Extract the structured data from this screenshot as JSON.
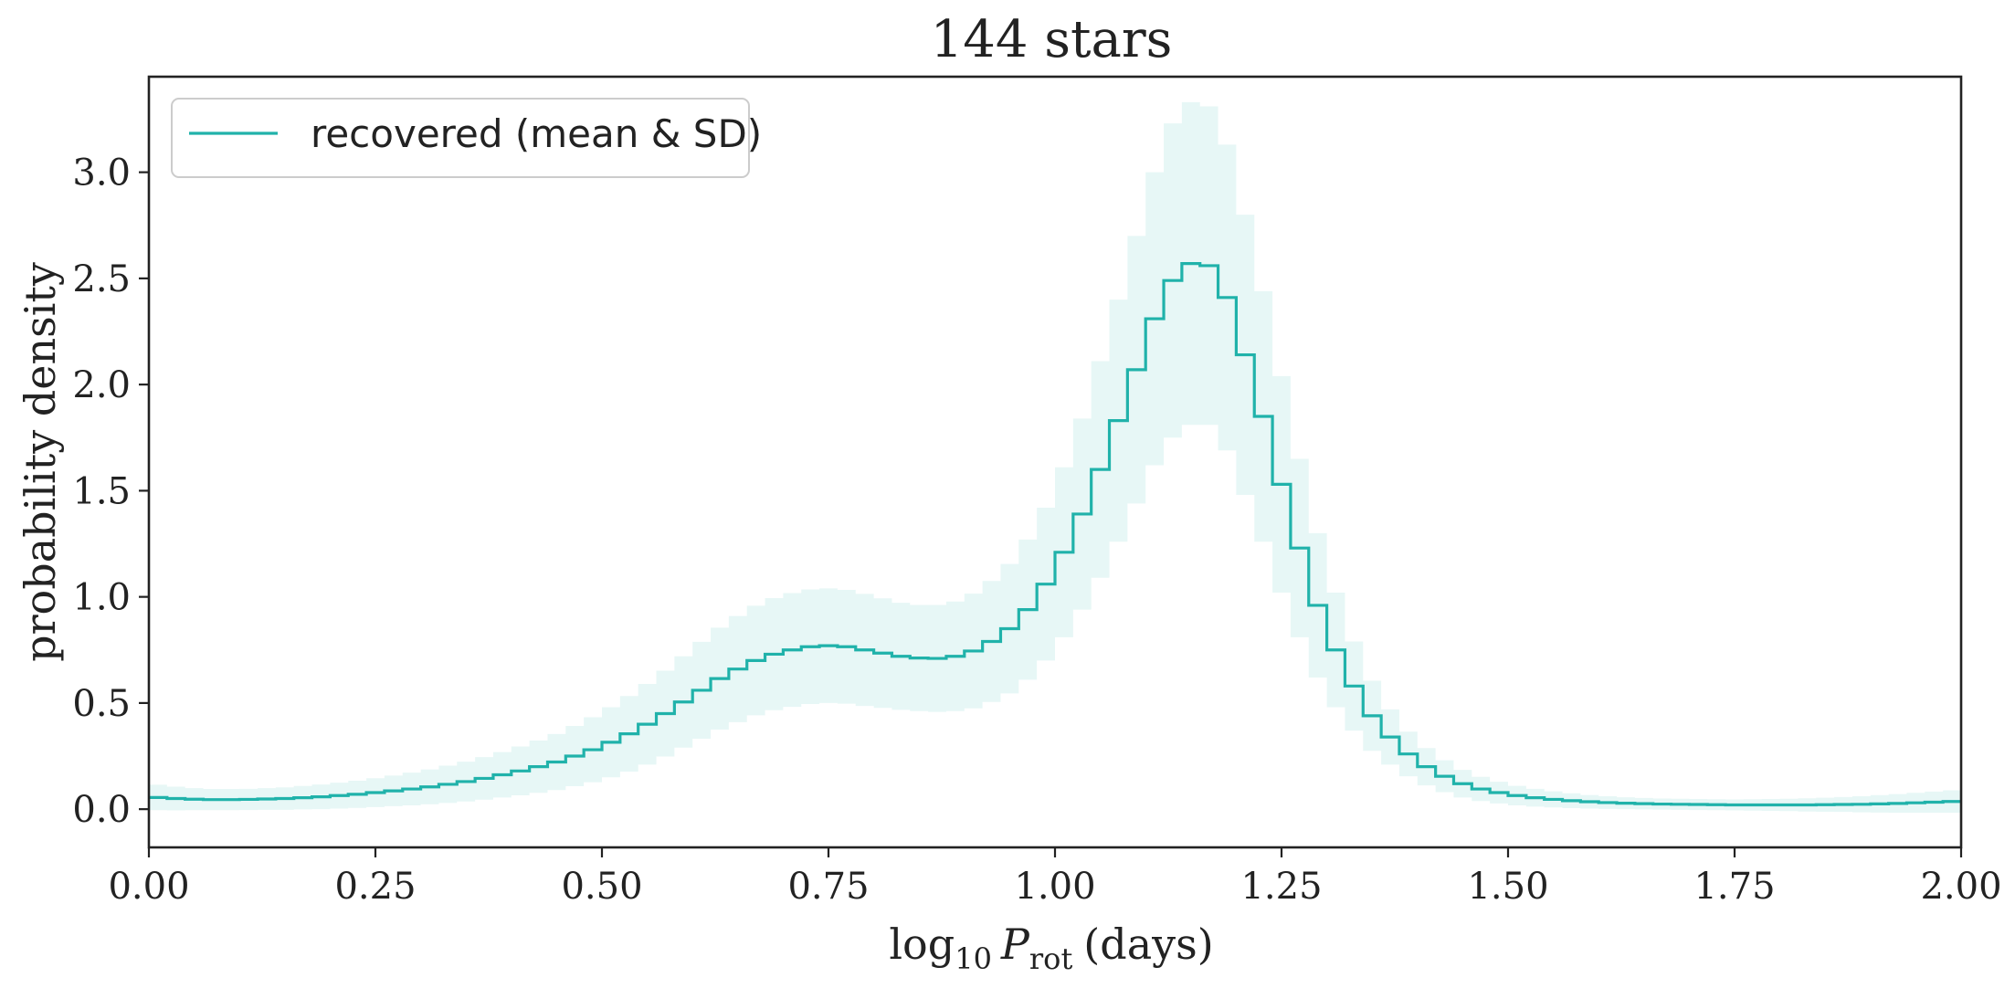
{
  "chart_data": {
    "type": "line",
    "title": "144 stars",
    "xlabel": {
      "base": "log",
      "sub1": "10",
      "var": "P",
      "sub2": "rot",
      "unit": "(days)"
    },
    "ylabel": "probability density",
    "xlim": [
      0,
      2
    ],
    "ylim": [
      -0.18,
      3.45
    ],
    "xticks": [
      0,
      0.25,
      0.5,
      0.75,
      1.0,
      1.25,
      1.5,
      1.75,
      2.0
    ],
    "xtick_labels": [
      "0.00",
      "0.25",
      "0.50",
      "0.75",
      "1.00",
      "1.25",
      "1.50",
      "1.75",
      "2.00"
    ],
    "yticks": [
      0,
      0.5,
      1.0,
      1.5,
      2.0,
      2.5,
      3.0
    ],
    "ytick_labels": [
      "0.0",
      "0.5",
      "1.0",
      "1.5",
      "2.0",
      "2.5",
      "3.0"
    ],
    "legend": {
      "label": "recovered (mean & SD)",
      "position": "top-left"
    },
    "colors": {
      "line": "#20b2aa",
      "band": "#20b2aa",
      "band_opacity": 0.11,
      "axes": "#222222",
      "text": "#222222"
    },
    "bin_width": 0.02,
    "x": [
      0.0,
      0.02,
      0.04,
      0.06,
      0.08,
      0.1,
      0.12,
      0.14,
      0.16,
      0.18,
      0.2,
      0.22,
      0.24,
      0.26,
      0.28,
      0.3,
      0.32,
      0.34,
      0.36,
      0.38,
      0.4,
      0.42,
      0.44,
      0.46,
      0.48,
      0.5,
      0.52,
      0.54,
      0.56,
      0.58,
      0.6,
      0.62,
      0.64,
      0.66,
      0.68,
      0.7,
      0.72,
      0.74,
      0.76,
      0.78,
      0.8,
      0.82,
      0.84,
      0.86,
      0.88,
      0.9,
      0.92,
      0.94,
      0.96,
      0.98,
      1.0,
      1.02,
      1.04,
      1.06,
      1.08,
      1.1,
      1.12,
      1.14,
      1.16,
      1.18,
      1.2,
      1.22,
      1.24,
      1.26,
      1.28,
      1.3,
      1.32,
      1.34,
      1.36,
      1.38,
      1.4,
      1.42,
      1.44,
      1.46,
      1.48,
      1.5,
      1.52,
      1.54,
      1.56,
      1.58,
      1.6,
      1.62,
      1.64,
      1.66,
      1.68,
      1.7,
      1.72,
      1.74,
      1.76,
      1.78,
      1.8,
      1.82,
      1.84,
      1.86,
      1.88,
      1.9,
      1.92,
      1.94,
      1.96,
      1.98
    ],
    "mean": [
      0.055,
      0.05,
      0.047,
      0.045,
      0.045,
      0.046,
      0.048,
      0.05,
      0.054,
      0.058,
      0.064,
      0.07,
      0.078,
      0.086,
      0.095,
      0.105,
      0.117,
      0.13,
      0.145,
      0.162,
      0.18,
      0.2,
      0.222,
      0.25,
      0.28,
      0.315,
      0.355,
      0.4,
      0.45,
      0.505,
      0.56,
      0.615,
      0.66,
      0.7,
      0.73,
      0.75,
      0.765,
      0.77,
      0.765,
      0.75,
      0.735,
      0.72,
      0.712,
      0.71,
      0.72,
      0.745,
      0.79,
      0.85,
      0.94,
      1.06,
      1.21,
      1.39,
      1.6,
      1.83,
      2.07,
      2.31,
      2.49,
      2.57,
      2.56,
      2.41,
      2.14,
      1.85,
      1.53,
      1.23,
      0.96,
      0.75,
      0.58,
      0.44,
      0.34,
      0.26,
      0.2,
      0.155,
      0.12,
      0.095,
      0.078,
      0.064,
      0.054,
      0.046,
      0.04,
      0.035,
      0.031,
      0.028,
      0.026,
      0.024,
      0.023,
      0.022,
      0.021,
      0.02,
      0.02,
      0.02,
      0.02,
      0.02,
      0.021,
      0.022,
      0.023,
      0.025,
      0.027,
      0.03,
      0.033,
      0.036
    ],
    "sd": [
      0.06,
      0.056,
      0.052,
      0.05,
      0.05,
      0.05,
      0.051,
      0.053,
      0.055,
      0.058,
      0.061,
      0.064,
      0.068,
      0.072,
      0.077,
      0.082,
      0.088,
      0.094,
      0.1,
      0.107,
      0.115,
      0.123,
      0.132,
      0.142,
      0.153,
      0.165,
      0.178,
      0.19,
      0.202,
      0.215,
      0.228,
      0.24,
      0.25,
      0.258,
      0.264,
      0.268,
      0.27,
      0.27,
      0.268,
      0.264,
      0.258,
      0.252,
      0.25,
      0.252,
      0.258,
      0.27,
      0.285,
      0.305,
      0.33,
      0.36,
      0.4,
      0.45,
      0.51,
      0.57,
      0.63,
      0.69,
      0.74,
      0.76,
      0.75,
      0.72,
      0.66,
      0.59,
      0.51,
      0.42,
      0.34,
      0.27,
      0.21,
      0.165,
      0.13,
      0.105,
      0.088,
      0.075,
      0.065,
      0.057,
      0.051,
      0.046,
      0.042,
      0.038,
      0.035,
      0.032,
      0.03,
      0.028,
      0.027,
      0.026,
      0.026,
      0.026,
      0.026,
      0.026,
      0.027,
      0.028,
      0.029,
      0.031,
      0.033,
      0.035,
      0.038,
      0.041,
      0.044,
      0.047,
      0.05,
      0.053
    ]
  }
}
